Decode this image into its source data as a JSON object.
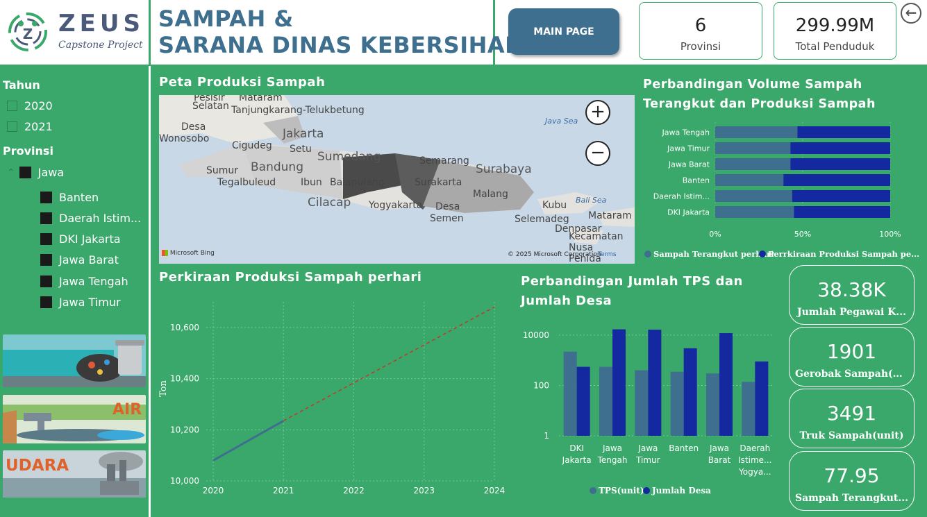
{
  "header": {
    "logo_name": "ZEUS",
    "logo_sub": "Capstone Project",
    "title_line1": "SAMPAH &",
    "title_line2": "SARANA DINAS KEBERSIHAN",
    "main_page_label": "MAIN PAGE",
    "kpi_provinsi": {
      "value": "6",
      "label": "Provinsi"
    },
    "kpi_penduduk": {
      "value": "299.99M",
      "label": "Total Penduduk"
    }
  },
  "sidebar": {
    "tahun_label": "Tahun",
    "years": [
      "2020",
      "2021"
    ],
    "provinsi_label": "Provinsi",
    "group": "Jawa",
    "provinces": [
      "Banten",
      "Daerah Istim...",
      "DKI Jakarta",
      "Jawa Barat",
      "Jawa Tengah",
      "Jawa Timur"
    ],
    "banner_air": "AIR",
    "banner_udara": "UDARA"
  },
  "map": {
    "title": "Peta Produksi Sampah",
    "labels": [
      "Pesisir",
      "Selatan",
      "Mataram",
      "Tanjungkarang-Telukbetung",
      "Desa",
      "Wonosobo",
      "Jakarta",
      "Cigudeg",
      "Setu",
      "Sumedang",
      "Semarang",
      "Surabaya",
      "Bandung",
      "Sumur",
      "Tegalbuleud",
      "Ibun",
      "Balapulang",
      "Surakarta",
      "Malang",
      "Cilacap",
      "Yogyakarta",
      "Desa",
      "Semen",
      "Kubu",
      "Selemadeg",
      "Denpasar",
      "Mataram",
      "Kecamatan",
      "Nusa",
      "Penida"
    ],
    "sea_labels": [
      "Java Sea",
      "Bali Sea"
    ],
    "provider": "Microsoft Bing",
    "copyright": "© 2025 Microsoft Corporation",
    "terms": "Terms"
  },
  "hbar": {
    "title_line1": "Perbandingan Volume Sampah",
    "title_line2": "Terangkut dan Produksi Sampah",
    "chart_data": {
      "type": "bar",
      "orientation": "horizontal",
      "stacked": "100%",
      "categories": [
        "Jawa Tengah",
        "Jawa Timur",
        "Jawa Barat",
        "Banten",
        "Daerah Istim...",
        "DKI Jakarta"
      ],
      "series": [
        {
          "name": "Sampah Terangkut perhari",
          "values": [
            47,
            43,
            43,
            39,
            44,
            45
          ],
          "color": "#3f6f8e"
        },
        {
          "name": "Perrkiraan Produksi Sampah pe...",
          "values": [
            53,
            57,
            57,
            61,
            56,
            55
          ],
          "color": "#1428a0"
        }
      ],
      "xticks": [
        "0%",
        "50%",
        "100%"
      ]
    }
  },
  "line": {
    "title": "Perkiraan Produksi Sampah perhari",
    "chart_data": {
      "type": "line",
      "x": [
        2020,
        2021,
        2022,
        2023,
        2024
      ],
      "series": [
        {
          "name": "actual",
          "x": [
            2020,
            2021
          ],
          "values": [
            10080,
            10235
          ],
          "color": "#3f6f8e",
          "style": "solid"
        },
        {
          "name": "forecast",
          "x": [
            2021,
            2024
          ],
          "values": [
            10235,
            10680
          ],
          "color": "#c0392b",
          "style": "dashed"
        }
      ],
      "ylabel": "Ton",
      "ylim": [
        10000,
        10700
      ],
      "yticks": [
        "10,000",
        "10,200",
        "10,400",
        "10,600"
      ],
      "xticks": [
        "2020",
        "2021",
        "2022",
        "2023",
        "2024"
      ]
    }
  },
  "vbar": {
    "title_line1": "Perbandingan Jumlah TPS dan",
    "title_line2": "Jumlah Desa",
    "chart_data": {
      "type": "bar",
      "yscale": "log",
      "categories": [
        [
          "DKI",
          "Jakarta"
        ],
        [
          "Jawa",
          "Tengah"
        ],
        [
          "Jawa",
          "Timur"
        ],
        [
          "Banten"
        ],
        [
          "Jawa",
          "Barat"
        ],
        [
          "Daerah",
          "Istime...",
          "Yogya..."
        ]
      ],
      "series": [
        {
          "name": "TPS(unit)",
          "values": [
            2200,
            550,
            400,
            350,
            300,
            140
          ],
          "color": "#3f6f8e"
        },
        {
          "name": "Jumlah Desa",
          "values": [
            550,
            17000,
            16500,
            3000,
            12000,
            900
          ],
          "color": "#1428a0"
        }
      ],
      "ylim": [
        1,
        20000
      ],
      "yticks": [
        "1",
        "100",
        "10000"
      ]
    }
  },
  "cards": [
    {
      "value": "38.38K",
      "label": "Jumlah Pegawai K..."
    },
    {
      "value": "1901",
      "label": "Gerobak Sampah(u..."
    },
    {
      "value": "3491",
      "label": "Truk Sampah(unit)"
    },
    {
      "value": "77.95",
      "label": "Sampah Terangkut..."
    }
  ]
}
